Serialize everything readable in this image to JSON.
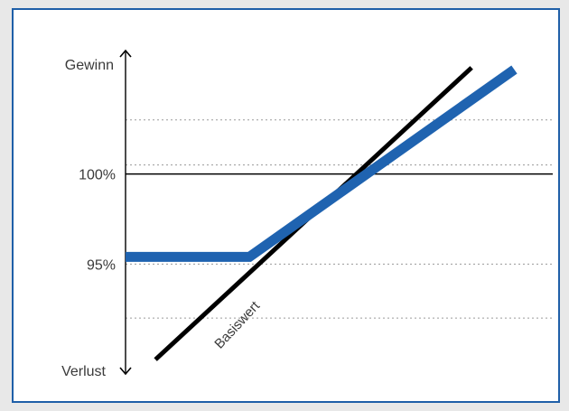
{
  "chart_data": {
    "type": "line",
    "y_top_label": "Gewinn",
    "y_bottom_label": "Verlust",
    "y_ticks": [
      {
        "label": "100%",
        "value": 100
      },
      {
        "label": "95%",
        "value": 95
      }
    ],
    "ylim": [
      89,
      106.5
    ],
    "xlim": [
      0,
      100
    ],
    "grid": "dotted",
    "gridlines": [
      103,
      100.5,
      95,
      92
    ],
    "series": [
      {
        "name": "Basiswert",
        "color": "#000000",
        "x": [
          7,
          81
        ],
        "y": [
          89.7,
          105.9
        ]
      },
      {
        "name": "",
        "color": "#1f63b0",
        "x": [
          0,
          29,
          91
        ],
        "y": [
          95.4,
          95.4,
          105.8
        ]
      }
    ],
    "annotation": "Basiswert",
    "colors": {
      "frame": "#1f5fa8",
      "product": "#1f63b0",
      "underlying": "#000000"
    }
  }
}
